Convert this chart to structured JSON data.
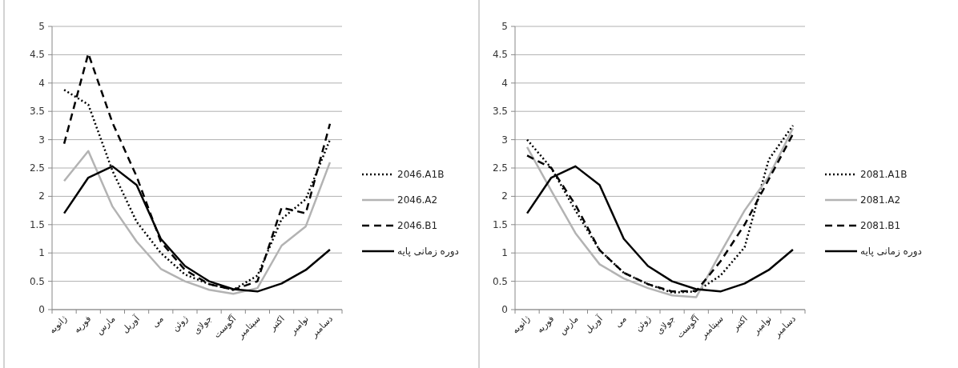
{
  "chart_data": [
    {
      "type": "line",
      "categories": [
        "ژانویه",
        "فوریه",
        "مارس",
        "آوریل",
        "می",
        "ژوئن",
        "جولای",
        "آگوست",
        "سپتامبر",
        "اکتبر",
        "نوامبر",
        "دسامبر"
      ],
      "ylim": [
        0,
        5
      ],
      "yticks": [
        0,
        0.5,
        1,
        1.5,
        2,
        2.5,
        3,
        3.5,
        4,
        4.5,
        5
      ],
      "grid": "y",
      "legend": "right",
      "series": [
        {
          "name": "2046.A1B",
          "color": "#000000",
          "line_style": "dotted",
          "values": [
            3.88,
            3.62,
            2.45,
            1.55,
            1.0,
            0.62,
            0.45,
            0.35,
            0.6,
            1.6,
            1.95,
            3.0
          ]
        },
        {
          "name": "2046.A2",
          "color": "#b3b3b3",
          "line_style": "solid",
          "values": [
            2.27,
            2.8,
            1.82,
            1.2,
            0.72,
            0.5,
            0.35,
            0.28,
            0.38,
            1.13,
            1.47,
            2.6
          ]
        },
        {
          "name": "2046.B1",
          "color": "#000000",
          "line_style": "dashed",
          "values": [
            2.93,
            4.52,
            3.3,
            2.35,
            1.2,
            0.7,
            0.45,
            0.35,
            0.5,
            1.8,
            1.7,
            3.28
          ]
        },
        {
          "name": "دوره زمانی پایه",
          "color": "#000000",
          "line_style": "solid",
          "values": [
            1.7,
            2.33,
            2.53,
            2.2,
            1.25,
            0.77,
            0.5,
            0.36,
            0.32,
            0.46,
            0.7,
            1.06
          ]
        }
      ]
    },
    {
      "type": "line",
      "categories": [
        "ژانویه",
        "فوریه",
        "مارس",
        "آوریل",
        "می",
        "ژوئن",
        "جولای",
        "آگوست",
        "سپتامبر",
        "اکتبر",
        "نوامبر",
        "دسامبر"
      ],
      "ylim": [
        0,
        5
      ],
      "yticks": [
        0,
        0.5,
        1,
        1.5,
        2,
        2.5,
        3,
        3.5,
        4,
        4.5,
        5
      ],
      "grid": "y",
      "legend": "right",
      "series": [
        {
          "name": "2081.A1B",
          "color": "#000000",
          "line_style": "dotted",
          "values": [
            3.0,
            2.5,
            1.75,
            1.05,
            0.65,
            0.45,
            0.3,
            0.32,
            0.6,
            1.1,
            2.65,
            3.25
          ]
        },
        {
          "name": "2081.A2",
          "color": "#b3b3b3",
          "line_style": "solid",
          "values": [
            2.87,
            2.1,
            1.35,
            0.8,
            0.55,
            0.38,
            0.25,
            0.22,
            1.0,
            1.75,
            2.35,
            3.2
          ]
        },
        {
          "name": "2081.B1",
          "color": "#000000",
          "line_style": "dashed",
          "values": [
            2.72,
            2.5,
            1.85,
            1.05,
            0.65,
            0.45,
            0.32,
            0.33,
            0.85,
            1.5,
            2.3,
            3.1
          ]
        },
        {
          "name": "دوره زمانی پایه",
          "color": "#000000",
          "line_style": "solid",
          "values": [
            1.7,
            2.33,
            2.53,
            2.2,
            1.25,
            0.77,
            0.5,
            0.36,
            0.32,
            0.46,
            0.7,
            1.06
          ]
        }
      ]
    }
  ]
}
